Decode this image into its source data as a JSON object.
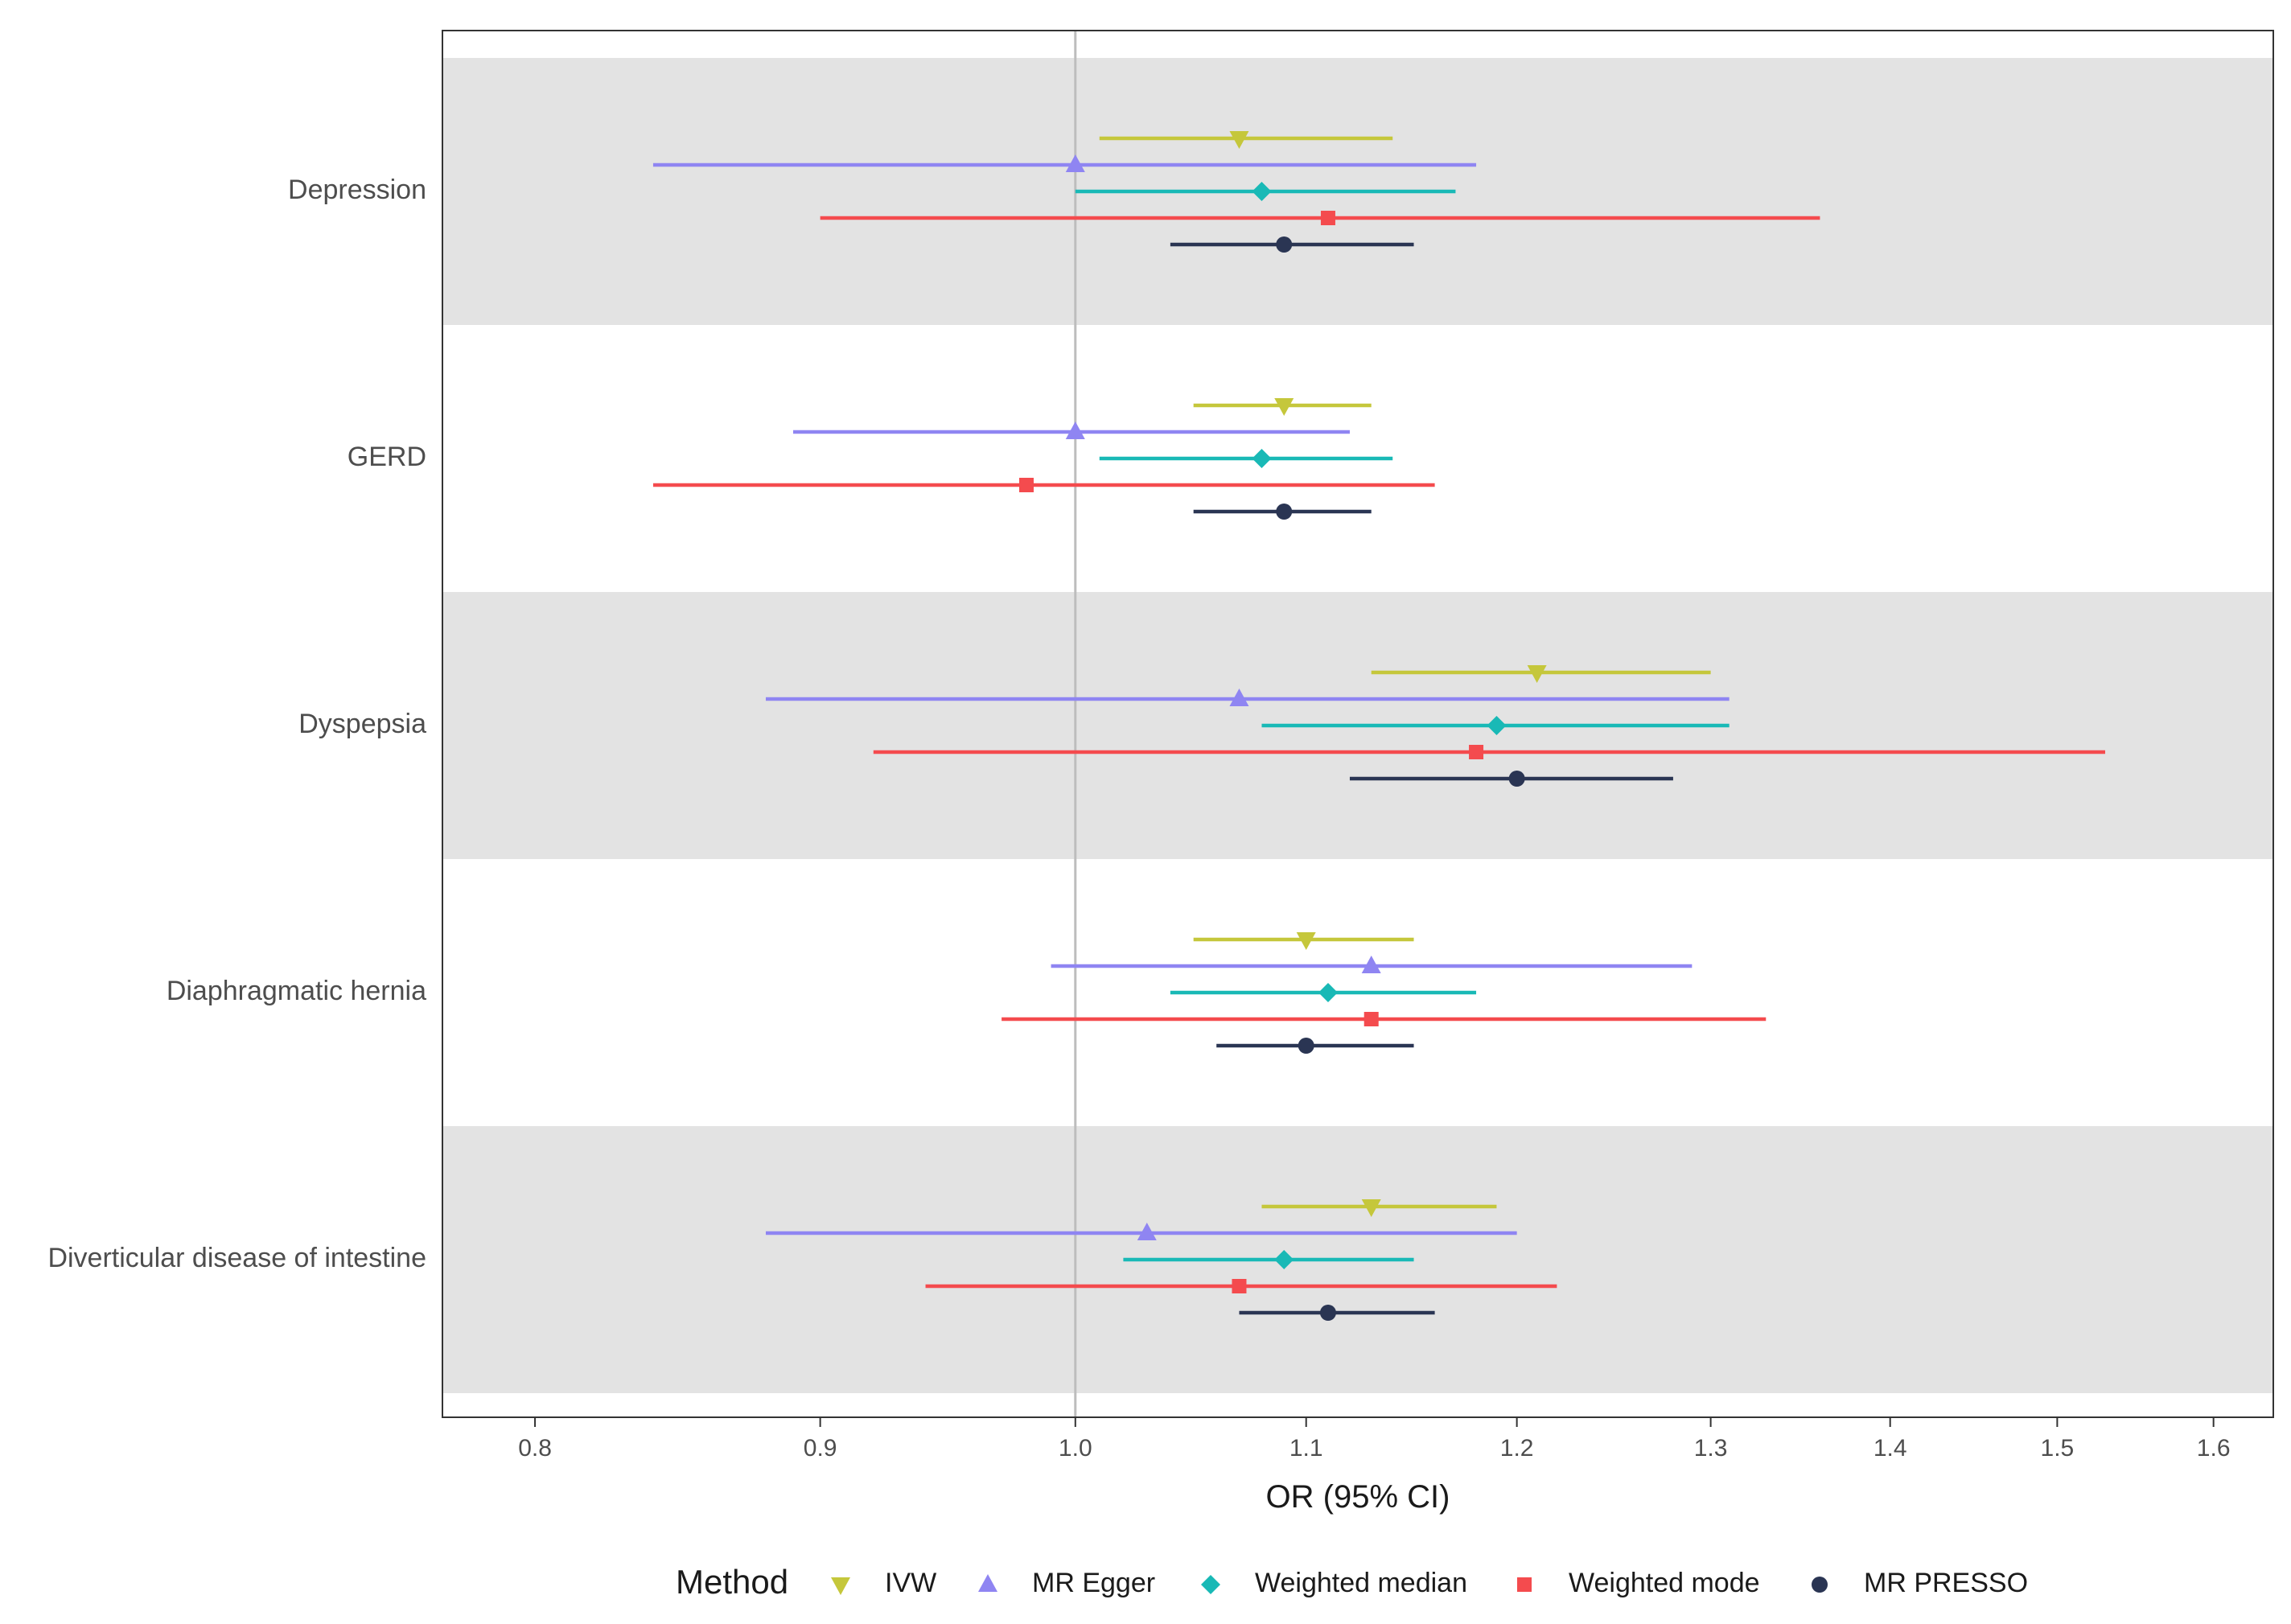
{
  "chart_data": {
    "type": "forest",
    "xlabel": "OR (95% CI)",
    "xlim": [
      0.77,
      1.64
    ],
    "x_scale": "log",
    "x_ticks": [
      0.8,
      0.9,
      1.0,
      1.1,
      1.2,
      1.3,
      1.4,
      1.5,
      1.6
    ],
    "x_tick_labels": [
      "0.8",
      "0.9",
      "1.0",
      "1.1",
      "1.2",
      "1.3",
      "1.4",
      "1.5",
      "1.6"
    ],
    "reference_line": 1.0,
    "categories": [
      "Depression",
      "GERD",
      "Dyspepsia",
      "Diaphragmatic hernia",
      "Diverticular disease of intestine"
    ],
    "methods": [
      {
        "name": "IVW",
        "color": "#c5c73b",
        "shape": "triangle-down"
      },
      {
        "name": "MR Egger",
        "color": "#8f85f2",
        "shape": "triangle-up"
      },
      {
        "name": "Weighted median",
        "color": "#19b9b6",
        "shape": "diamond"
      },
      {
        "name": "Weighted mode",
        "color": "#f44b4e",
        "shape": "square"
      },
      {
        "name": "MR PRESSO",
        "color": "#2a3553",
        "shape": "circle"
      }
    ],
    "series": [
      {
        "category": "Depression",
        "estimates": [
          {
            "method": "IVW",
            "or": 1.07,
            "lo": 1.01,
            "hi": 1.14
          },
          {
            "method": "MR Egger",
            "or": 1.0,
            "lo": 0.84,
            "hi": 1.18
          },
          {
            "method": "Weighted median",
            "or": 1.08,
            "lo": 1.0,
            "hi": 1.17
          },
          {
            "method": "Weighted mode",
            "or": 1.11,
            "lo": 0.9,
            "hi": 1.36
          },
          {
            "method": "MR PRESSO",
            "or": 1.09,
            "lo": 1.04,
            "hi": 1.15
          }
        ]
      },
      {
        "category": "GERD",
        "estimates": [
          {
            "method": "IVW",
            "or": 1.09,
            "lo": 1.05,
            "hi": 1.13
          },
          {
            "method": "MR Egger",
            "or": 1.0,
            "lo": 0.89,
            "hi": 1.12
          },
          {
            "method": "Weighted median",
            "or": 1.08,
            "lo": 1.01,
            "hi": 1.14
          },
          {
            "method": "Weighted mode",
            "or": 0.98,
            "lo": 0.84,
            "hi": 1.16
          },
          {
            "method": "MR PRESSO",
            "or": 1.09,
            "lo": 1.05,
            "hi": 1.13
          }
        ]
      },
      {
        "category": "Dyspepsia",
        "estimates": [
          {
            "method": "IVW",
            "or": 1.21,
            "lo": 1.13,
            "hi": 1.3
          },
          {
            "method": "MR Egger",
            "or": 1.07,
            "lo": 0.88,
            "hi": 1.31
          },
          {
            "method": "Weighted median",
            "or": 1.19,
            "lo": 1.08,
            "hi": 1.31
          },
          {
            "method": "Weighted mode",
            "or": 1.18,
            "lo": 0.92,
            "hi": 1.53
          },
          {
            "method": "MR PRESSO",
            "or": 1.2,
            "lo": 1.12,
            "hi": 1.28
          }
        ]
      },
      {
        "category": "Diaphragmatic hernia",
        "estimates": [
          {
            "method": "IVW",
            "or": 1.1,
            "lo": 1.05,
            "hi": 1.15
          },
          {
            "method": "MR Egger",
            "or": 1.13,
            "lo": 0.99,
            "hi": 1.29
          },
          {
            "method": "Weighted median",
            "or": 1.11,
            "lo": 1.04,
            "hi": 1.18
          },
          {
            "method": "Weighted mode",
            "or": 1.13,
            "lo": 0.97,
            "hi": 1.33
          },
          {
            "method": "MR PRESSO",
            "or": 1.1,
            "lo": 1.06,
            "hi": 1.15
          }
        ]
      },
      {
        "category": "Diverticular disease of intestine",
        "estimates": [
          {
            "method": "IVW",
            "or": 1.13,
            "lo": 1.08,
            "hi": 1.19
          },
          {
            "method": "MR Egger",
            "or": 1.03,
            "lo": 0.88,
            "hi": 1.2
          },
          {
            "method": "Weighted median",
            "or": 1.09,
            "lo": 1.02,
            "hi": 1.15
          },
          {
            "method": "Weighted mode",
            "or": 1.07,
            "lo": 0.94,
            "hi": 1.22
          },
          {
            "method": "MR PRESSO",
            "or": 1.11,
            "lo": 1.07,
            "hi": 1.16
          }
        ]
      }
    ],
    "legend": {
      "title": "Method",
      "position": "bottom"
    },
    "band_color": "#e3e3e3",
    "reference_line_color": "#bdbdbd"
  }
}
